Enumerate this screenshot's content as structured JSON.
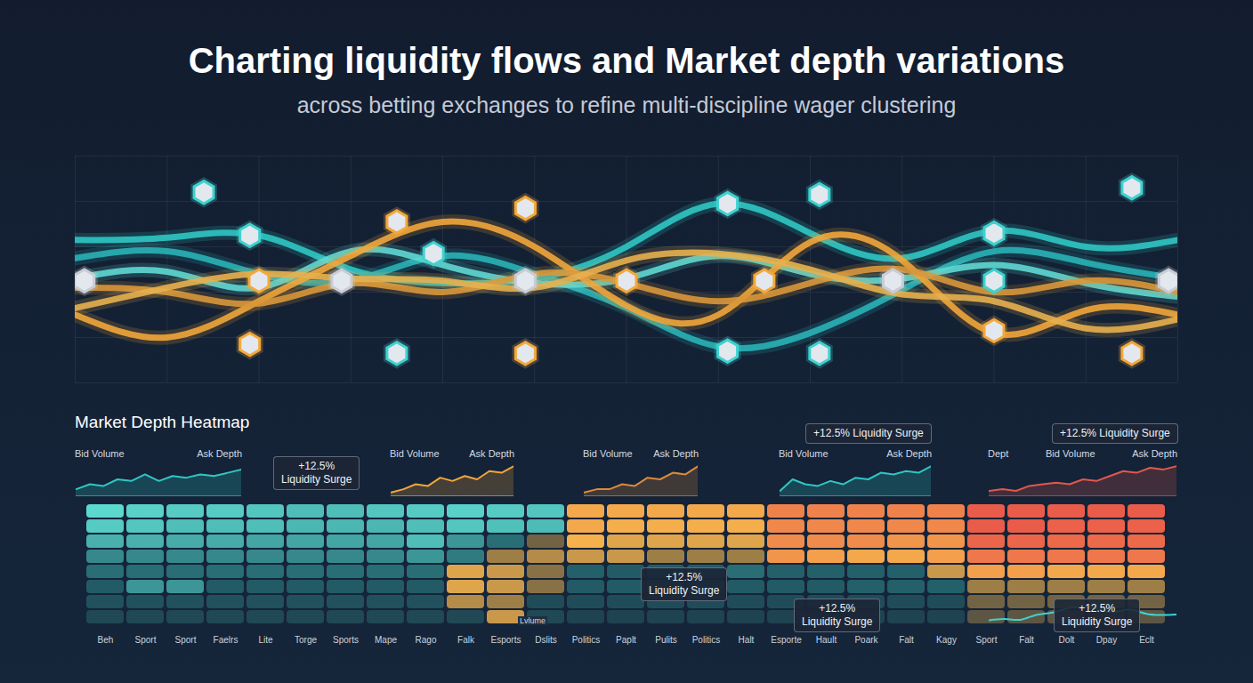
{
  "chart_data": [
    {
      "type": "line",
      "title": "Charting liquidity flows and Market depth variations",
      "subtitle": "across betting exchanges to refine multi-discipline wager clustering",
      "x": [
        0,
        1,
        2,
        3,
        4,
        5,
        6,
        7,
        8,
        9,
        10,
        11,
        12
      ],
      "xlim": [
        0,
        12
      ],
      "ylim": [
        0,
        10
      ],
      "xticks": [
        0,
        1,
        2,
        3,
        4,
        5,
        6,
        7,
        8,
        9,
        10,
        11,
        12
      ],
      "yticks": [
        0,
        2,
        4,
        6,
        8,
        10
      ],
      "grid": true,
      "tick_labels": false,
      "marker": "hexagon",
      "series": [
        {
          "color": "#2fc6c4",
          "values": [
            6.3,
            6.4,
            6.5,
            5.0,
            4.4,
            4.6,
            6.0,
            7.9,
            6.6,
            5.5,
            6.7,
            6.0,
            6.3
          ]
        },
        {
          "color": "#29b3b6",
          "values": [
            5.5,
            5.8,
            4.8,
            4.5,
            5.6,
            4.8,
            3.3,
            1.6,
            2.2,
            4.1,
            5.8,
            5.3,
            4.6
          ]
        },
        {
          "color": "#5fd8d2",
          "values": [
            4.6,
            4.9,
            4.2,
            5.8,
            5.2,
            4.4,
            4.6,
            5.6,
            4.8,
            4.6,
            5.2,
            4.4,
            3.8
          ]
        },
        {
          "color": "#f2a63a",
          "values": [
            3.0,
            2.0,
            3.6,
            5.6,
            7.1,
            6.0,
            3.4,
            3.0,
            6.2,
            5.4,
            2.2,
            3.2,
            3.0
          ]
        },
        {
          "color": "#d9973a",
          "values": [
            4.2,
            4.0,
            3.5,
            4.4,
            4.0,
            4.8,
            4.4,
            3.6,
            4.4,
            5.0,
            4.0,
            4.5,
            4.0
          ]
        },
        {
          "color": "#e8b04e",
          "values": [
            3.3,
            4.2,
            4.8,
            4.6,
            4.5,
            4.2,
            5.4,
            5.7,
            5.0,
            3.9,
            3.6,
            2.4,
            2.8
          ]
        }
      ],
      "points": [
        {
          "x": 0.1,
          "y": 4.5,
          "color": "#c9ccd4"
        },
        {
          "x": 1.4,
          "y": 8.4,
          "color": "#3fd2cf"
        },
        {
          "x": 1.9,
          "y": 6.5,
          "color": "#3fd2cf"
        },
        {
          "x": 2.0,
          "y": 4.5,
          "color": "#f2a93b"
        },
        {
          "x": 1.9,
          "y": 1.7,
          "color": "#f2a93b"
        },
        {
          "x": 2.9,
          "y": 4.5,
          "color": "#c9ccd4"
        },
        {
          "x": 3.5,
          "y": 7.1,
          "color": "#f2a93b"
        },
        {
          "x": 3.9,
          "y": 5.7,
          "color": "#3fd2cf"
        },
        {
          "x": 3.5,
          "y": 1.3,
          "color": "#3fd2cf"
        },
        {
          "x": 4.9,
          "y": 7.7,
          "color": "#f2a93b"
        },
        {
          "x": 4.9,
          "y": 4.5,
          "color": "#c9ccd4"
        },
        {
          "x": 4.9,
          "y": 1.3,
          "color": "#f2a93b"
        },
        {
          "x": 6.0,
          "y": 4.5,
          "color": "#f2a93b"
        },
        {
          "x": 7.1,
          "y": 7.9,
          "color": "#3fd2cf"
        },
        {
          "x": 7.1,
          "y": 1.4,
          "color": "#3fd2cf"
        },
        {
          "x": 7.5,
          "y": 4.5,
          "color": "#f2a93b"
        },
        {
          "x": 8.1,
          "y": 8.3,
          "color": "#3fd2cf"
        },
        {
          "x": 8.1,
          "y": 1.3,
          "color": "#3fd2cf"
        },
        {
          "x": 8.9,
          "y": 4.5,
          "color": "#c9ccd4"
        },
        {
          "x": 10.0,
          "y": 6.6,
          "color": "#3fd2cf"
        },
        {
          "x": 10.0,
          "y": 4.5,
          "color": "#3fd2cf"
        },
        {
          "x": 10.0,
          "y": 2.3,
          "color": "#f2a93b"
        },
        {
          "x": 11.5,
          "y": 8.6,
          "color": "#3fd2cf"
        },
        {
          "x": 11.5,
          "y": 1.3,
          "color": "#f2a93b"
        },
        {
          "x": 11.9,
          "y": 4.5,
          "color": "#c9ccd4"
        }
      ]
    },
    {
      "type": "area",
      "tick_labels": false,
      "ylim": [
        0,
        10
      ],
      "panels": [
        {
          "labels": [
            "Bid Volume",
            "Ask Depth"
          ],
          "color": "#2fc6c4",
          "values": [
            2,
            3.5,
            3,
            5,
            4.5,
            6.5,
            4.5,
            6,
            5.5,
            6.5,
            6,
            7,
            8
          ]
        },
        {
          "labels": [
            "Bid Volume",
            "Ask Depth"
          ],
          "color": "#f2a63a",
          "values": [
            1,
            2,
            3.5,
            3,
            5.5,
            4.5,
            6,
            5,
            7.5,
            7,
            9
          ]
        },
        {
          "labels": [
            "Bid Volume",
            "Ask Depth"
          ],
          "color": "#d98a3c",
          "values": [
            1,
            2,
            2,
            3.5,
            3,
            5.5,
            5,
            7,
            6.5,
            9
          ]
        },
        {
          "labels": [
            "Bid Volume",
            "Ask Depth"
          ],
          "color": "#2fc6c4",
          "values": [
            1.5,
            5,
            3.5,
            3,
            4.5,
            3.5,
            5.5,
            5,
            7,
            6.5,
            7.5,
            7,
            9
          ]
        },
        {
          "labels": [
            "Dept",
            "Bid Volume",
            "Ask Depth"
          ],
          "color": "#e0584c",
          "values": [
            1.5,
            2,
            1.5,
            3,
            3.5,
            4,
            3.5,
            5,
            4.5,
            6,
            7.5,
            7,
            8.5,
            8,
            9
          ]
        }
      ]
    },
    {
      "type": "heatmap",
      "title": "Market Depth Heatmap",
      "categories": [
        "Beh",
        "Sport",
        "Sport",
        "Faelrs",
        "Lite",
        "Torge",
        "Sports",
        "Mape",
        "Rago",
        "Falk",
        "Esports",
        "Dslits",
        "Politics",
        "Paplt",
        "Pulits",
        "Politics",
        "Halt",
        "Esporte",
        "Hault",
        "Poark",
        "Falt",
        "Kagy",
        "Sport",
        "Falt",
        "Dolt",
        "Dpay",
        "Eclt"
      ],
      "zlim": [
        -100,
        100
      ],
      "colors": [
        "#62e6da",
        "#23606a",
        "#1c2f40",
        "#f5b24c",
        "#e9524a"
      ],
      "cells": [
        [
          -95,
          -92,
          -90,
          -90,
          -88,
          -85,
          -85,
          -88,
          -90,
          -92,
          -90,
          -88,
          55,
          55,
          55,
          55,
          55,
          75,
          75,
          75,
          75,
          75,
          95,
          95,
          95,
          95,
          95
        ],
        [
          -90,
          -88,
          -85,
          -85,
          -85,
          -82,
          -82,
          -82,
          -85,
          -88,
          -86,
          -84,
          55,
          52,
          52,
          52,
          52,
          72,
          72,
          72,
          72,
          72,
          95,
          95,
          92,
          92,
          92
        ],
        [
          -80,
          -80,
          -78,
          -78,
          -76,
          -76,
          -76,
          -76,
          -85,
          -70,
          -55,
          20,
          50,
          45,
          45,
          45,
          45,
          70,
          70,
          70,
          65,
          65,
          90,
          90,
          88,
          88,
          88
        ],
        [
          -65,
          -65,
          -65,
          -65,
          -65,
          -65,
          -65,
          -65,
          -70,
          -60,
          30,
          35,
          40,
          40,
          30,
          30,
          30,
          65,
          60,
          55,
          55,
          60,
          80,
          80,
          80,
          80,
          80
        ],
        [
          -55,
          -55,
          -55,
          -55,
          -55,
          -55,
          -55,
          -55,
          -55,
          45,
          40,
          25,
          -50,
          -45,
          -45,
          -45,
          -55,
          -50,
          -50,
          -50,
          -50,
          40,
          60,
          60,
          55,
          55,
          55
        ],
        [
          -45,
          -70,
          -70,
          -45,
          -45,
          -45,
          -45,
          -45,
          -45,
          45,
          40,
          25,
          -45,
          -45,
          -45,
          -45,
          -45,
          -45,
          -45,
          -50,
          -50,
          -50,
          30,
          30,
          30,
          30,
          30
        ],
        [
          -35,
          -35,
          -35,
          -35,
          -35,
          -35,
          -35,
          -35,
          -35,
          35,
          30,
          -30,
          -30,
          -30,
          -30,
          -30,
          -30,
          -30,
          -30,
          -30,
          -30,
          -30,
          20,
          20,
          20,
          20,
          20
        ],
        [
          -25,
          -25,
          -25,
          -25,
          -25,
          -25,
          -25,
          -25,
          -25,
          -25,
          40,
          -25,
          -20,
          -20,
          -20,
          -20,
          -20,
          -20,
          -20,
          -20,
          -20,
          -20,
          15,
          15,
          15,
          15,
          15
        ]
      ],
      "annotations": [
        "+12.5% Liquidity Surge",
        "+12.5% Liquidity Surge",
        "+12.5% Liquidity Surge",
        "+12.5% Liquidity Surge",
        "+12.5% Liquidity Surge",
        "+12.5% Liquidity Surge",
        "Lvlume"
      ],
      "overlay": {
        "type": "line",
        "color": "#3fd2cf",
        "ylim": [
          0,
          10
        ],
        "values": [
          1,
          1.5,
          1.2,
          3,
          3.8,
          5.5,
          6,
          5,
          4.2,
          5,
          3.5,
          3,
          3.2
        ]
      }
    }
  ]
}
